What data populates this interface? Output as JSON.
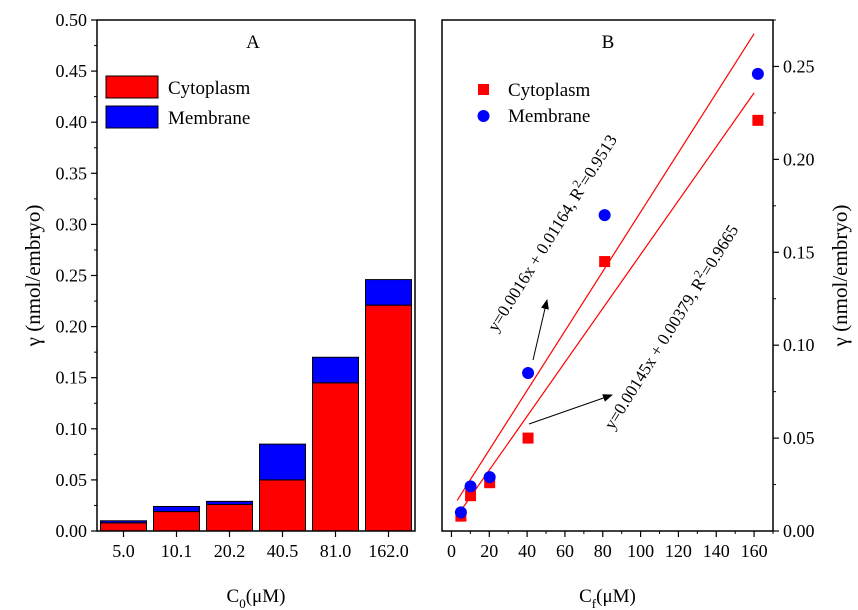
{
  "chart_data": [
    {
      "panel_label": "A",
      "type": "bar",
      "stacked": true,
      "categories": [
        "5.0",
        "10.1",
        "20.2",
        "40.5",
        "81.0",
        "162.0"
      ],
      "series": [
        {
          "name": "Cytoplasm",
          "color": "#ff0000",
          "values": [
            0.008,
            0.019,
            0.026,
            0.05,
            0.145,
            0.221
          ]
        },
        {
          "name": "Membrane",
          "color": "#0000ff",
          "values": [
            0.01,
            0.024,
            0.029,
            0.085,
            0.17,
            0.246
          ]
        }
      ],
      "xlabel": "C",
      "xlabel_sub": "0",
      "xlabel_unit": "(μM)",
      "ylabel": "γ (nmol/embryo)",
      "ylim": [
        0,
        0.5
      ],
      "yticks": [
        "0.00",
        "0.05",
        "0.10",
        "0.15",
        "0.20",
        "0.25",
        "0.30",
        "0.35",
        "0.40",
        "0.45",
        "0.50"
      ],
      "legend_position": "top-left",
      "grid": false
    },
    {
      "panel_label": "B",
      "type": "scatter",
      "series": [
        {
          "name": "Cytoplasm",
          "marker": "square",
          "color": "#ff0000",
          "x": [
            5.0,
            10.1,
            20.2,
            40.5,
            81.0,
            162.0
          ],
          "y": [
            0.008,
            0.019,
            0.026,
            0.05,
            0.145,
            0.221
          ]
        },
        {
          "name": "Membrane",
          "marker": "circle",
          "color": "#0000ff",
          "x": [
            5.0,
            10.1,
            20.2,
            40.5,
            81.0,
            162.0
          ],
          "y": [
            0.01,
            0.024,
            0.029,
            0.085,
            0.17,
            0.246
          ]
        }
      ],
      "fits": [
        {
          "equation": "y=0.0016x + 0.01164, R",
          "sup": "2",
          "r2": "=0.9513",
          "slope": 0.0016,
          "intercept": 0.01164,
          "color": "#ff0000"
        },
        {
          "equation": "y=0.00145x + 0.00379, R",
          "sup": "2",
          "r2": "=0.9665",
          "slope": 0.00145,
          "intercept": 0.00379,
          "color": "#ff0000"
        }
      ],
      "xlabel": "C",
      "xlabel_sub": "f",
      "xlabel_unit": "(μM)",
      "ylabel": "γ (nmol/embryo)",
      "xlim": [
        -5,
        170
      ],
      "ylim": [
        0,
        0.275
      ],
      "xticks": [
        0,
        20,
        40,
        60,
        80,
        100,
        120,
        140,
        160
      ],
      "yticks": [
        "0.00",
        "0.05",
        "0.10",
        "0.15",
        "0.20",
        "0.25"
      ],
      "legend_position": "top-left",
      "grid": false
    }
  ]
}
